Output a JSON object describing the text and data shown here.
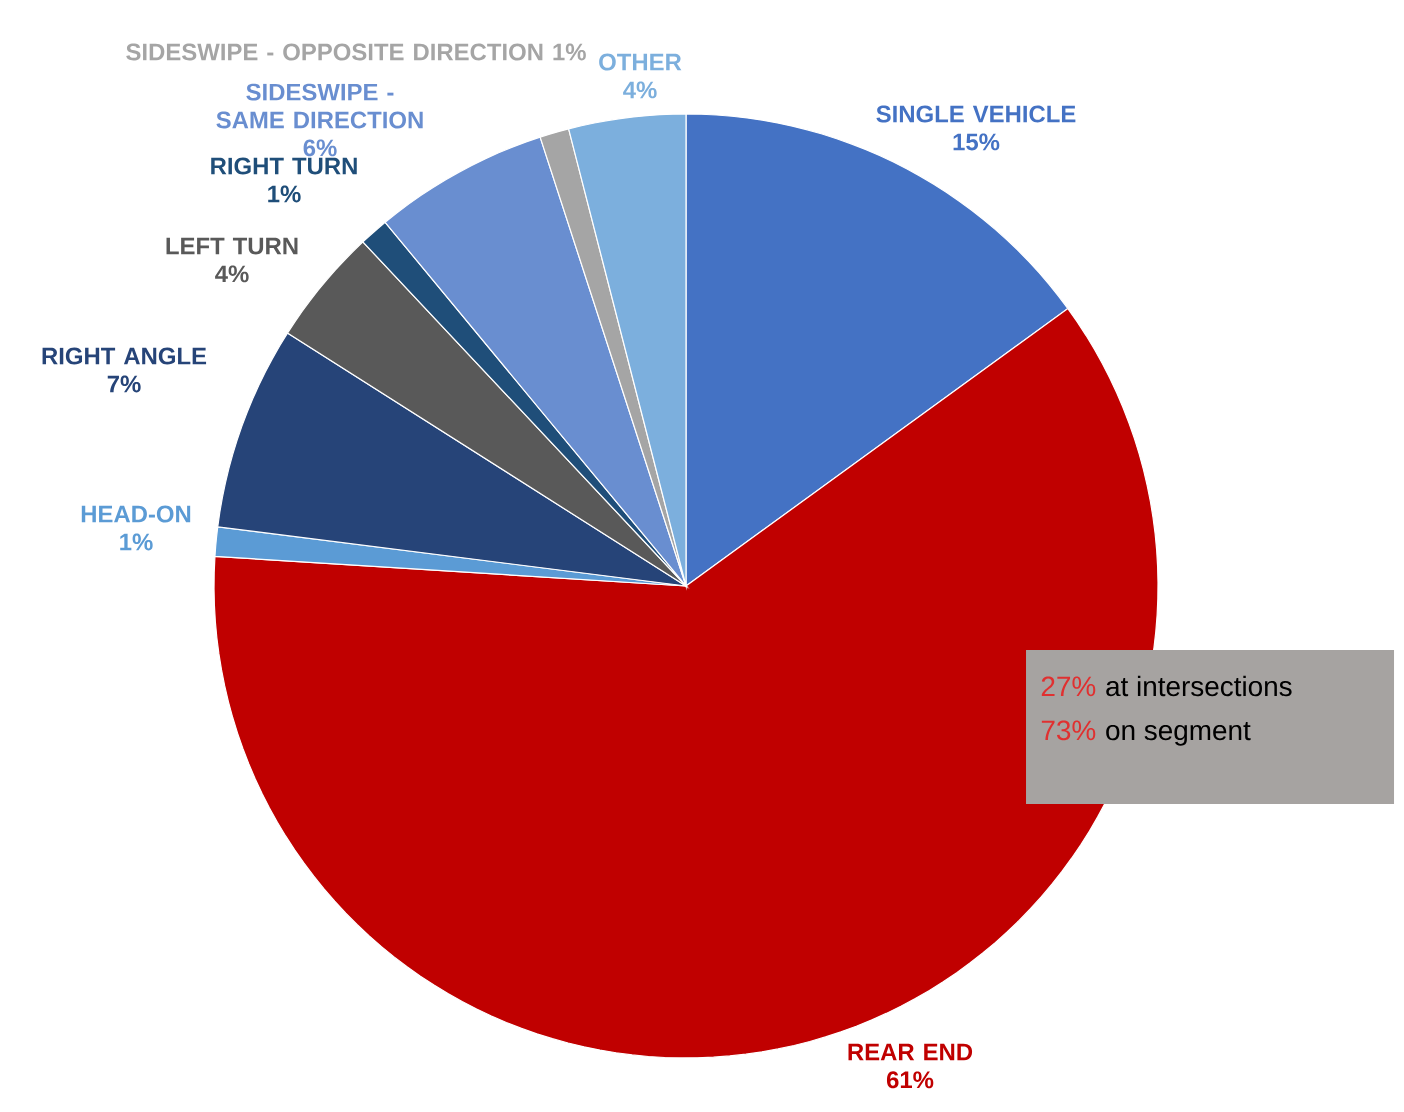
{
  "chart_data": {
    "type": "pie",
    "categories": [
      "SINGLE VEHICLE",
      "REAR END",
      "HEAD-ON",
      "RIGHT ANGLE",
      "LEFT TURN",
      "RIGHT TURN",
      "SIDESWIPE - SAME DIRECTION",
      "SIDESWIPE - OPPOSITE DIRECTION",
      "OTHER"
    ],
    "values": [
      15,
      61,
      1,
      7,
      4,
      1,
      6,
      1,
      4
    ],
    "colors": [
      "#4472c4",
      "#c00000",
      "#5b9bd5",
      "#264478",
      "#595959",
      "#1f4e79",
      "#698ed0",
      "#a5a5a5",
      "#7cafdd"
    ],
    "value_labels": [
      "15%",
      "61%",
      "1%",
      "7%",
      "4%",
      "1%",
      "6%",
      "1%",
      "4%"
    ],
    "annotations": [
      "27%",
      "at intersections",
      "73%",
      "on segment"
    ]
  }
}
